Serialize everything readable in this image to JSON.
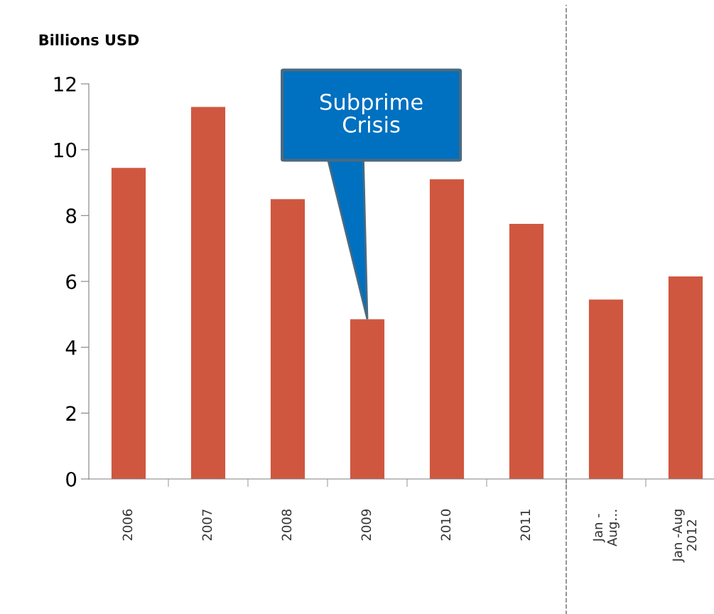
{
  "chart_data": {
    "type": "bar",
    "ylabel": "Billions USD",
    "categories": [
      "2006",
      "2007",
      "2008",
      "2009",
      "2010",
      "2011",
      "Jan -\nAug…",
      "Jan -Aug\n2012"
    ],
    "values": [
      9.45,
      11.3,
      8.5,
      4.85,
      9.1,
      7.75,
      5.45,
      6.15
    ],
    "color": "#d0573f",
    "ylim": [
      0,
      12
    ],
    "yticks": [
      0,
      2,
      4,
      6,
      8,
      10,
      12
    ],
    "grid": false,
    "legend": false,
    "annotations": [
      {
        "text": "Subprime\nCrisis",
        "x": "2009",
        "y": 4.85
      }
    ]
  }
}
